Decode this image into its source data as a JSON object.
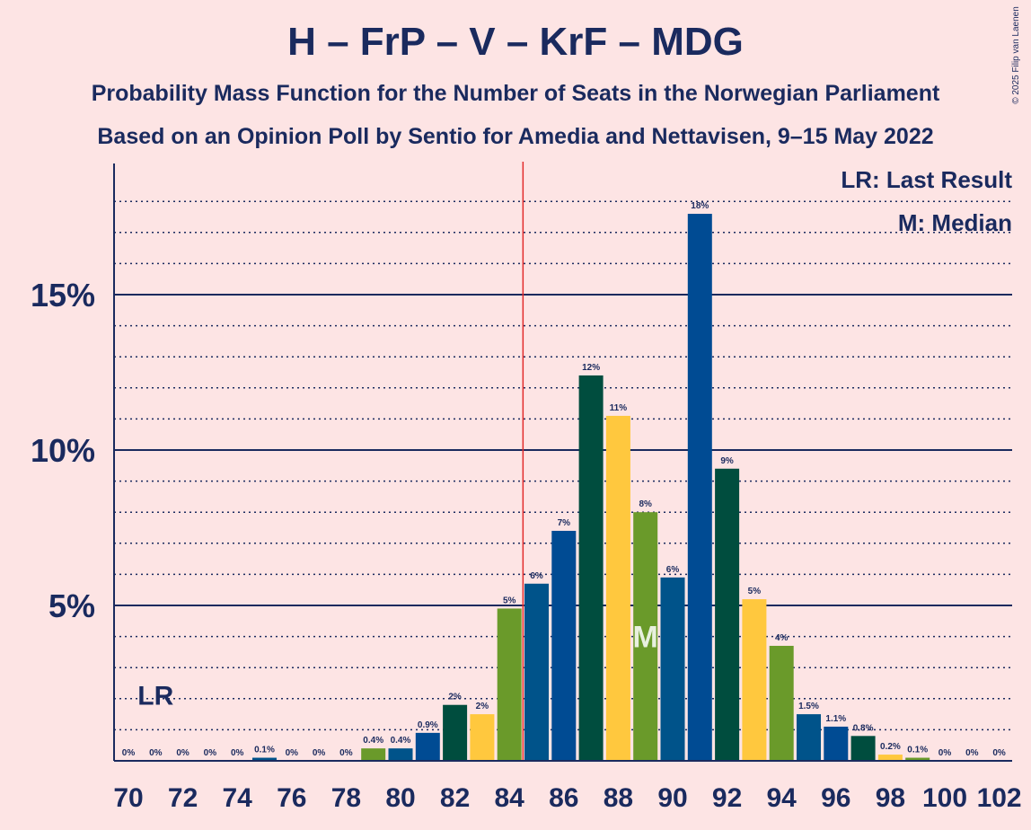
{
  "chart_data": {
    "type": "bar",
    "title": "H – FrP – V – KrF – MDG",
    "subtitle": "Probability Mass Function for the Number of Seats in the Norwegian Parliament",
    "subtitle2": "Based on an Opinion Poll by Sentio for Amedia and Nettavisen, 9–15 May 2022",
    "copyright": "© 2025 Filip van Laenen",
    "legend": {
      "placement": "top-right",
      "lr": "LR: Last Result",
      "median": "M: Median"
    },
    "lr_label": "LR",
    "median_label": "M",
    "last_result_seat": 71,
    "median_seat": 89,
    "majority_line_seat": 84.5,
    "ylim": [
      0,
      19
    ],
    "yticks": [
      {
        "value": 5,
        "label": "5%"
      },
      {
        "value": 10,
        "label": "10%"
      },
      {
        "value": 15,
        "label": "15%"
      }
    ],
    "xticks": [
      70,
      72,
      74,
      76,
      78,
      80,
      82,
      84,
      86,
      88,
      90,
      92,
      94,
      96,
      98,
      100,
      102
    ],
    "grid": "dotted",
    "colors": {
      "blue": "#00538A",
      "navy": "#004B93",
      "green": "#004D3E",
      "yellow": "#FFC83E",
      "olive": "#6A9A2A",
      "majority_line": "#E32C2C",
      "axis": "#1A2A5E",
      "background": "#FDE4E4"
    },
    "x": [
      70,
      71,
      72,
      73,
      74,
      75,
      76,
      77,
      78,
      79,
      80,
      81,
      82,
      83,
      84,
      85,
      86,
      87,
      88,
      89,
      90,
      91,
      92,
      93,
      94,
      95,
      96,
      97,
      98,
      99,
      100,
      101,
      102
    ],
    "values": [
      0,
      0,
      0,
      0,
      0,
      0.1,
      0,
      0,
      0,
      0.4,
      0.4,
      0.9,
      1.8,
      1.5,
      4.9,
      5.7,
      7.4,
      12.4,
      11.1,
      8.0,
      5.9,
      17.6,
      9.4,
      5.2,
      3.7,
      1.5,
      1.1,
      0.8,
      0.2,
      0.1,
      0,
      0,
      0
    ],
    "labels": [
      "0%",
      "0%",
      "0%",
      "0%",
      "0%",
      "0.1%",
      "0%",
      "0%",
      "0%",
      "0.4%",
      "0.4%",
      "0.9%",
      "2%",
      "2%",
      "5%",
      "6%",
      "7%",
      "12%",
      "11%",
      "8%",
      "6%",
      "18%",
      "9%",
      "5%",
      "4%",
      "1.5%",
      "1.1%",
      "0.8%",
      "0.2%",
      "0.1%",
      "0%",
      "0%",
      "0%"
    ],
    "bar_colors": [
      "blue",
      "navy",
      "green",
      "yellow",
      "olive",
      "blue",
      "navy",
      "green",
      "yellow",
      "olive",
      "blue",
      "navy",
      "green",
      "yellow",
      "olive",
      "blue",
      "navy",
      "green",
      "yellow",
      "olive",
      "blue",
      "navy",
      "green",
      "yellow",
      "olive",
      "blue",
      "navy",
      "green",
      "yellow",
      "olive",
      "blue",
      "navy",
      "green"
    ]
  }
}
